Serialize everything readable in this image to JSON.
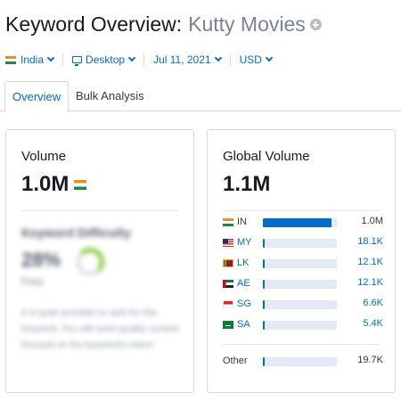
{
  "header": {
    "title_prefix": "Keyword Overview:",
    "keyword": "Kutty Movies"
  },
  "filters": {
    "country": "India",
    "device": "Desktop",
    "date": "Jul 11, 2021",
    "currency": "USD"
  },
  "tabs": [
    {
      "label": "Overview",
      "active": true
    },
    {
      "label": "Bulk Analysis",
      "active": false
    }
  ],
  "volume_card": {
    "label": "Volume",
    "value": "1.0M",
    "flag_icon": "india-flag-icon",
    "kd": {
      "title": "Keyword Difficulty",
      "value": "28%",
      "sub": "Easy",
      "level": 0.28,
      "description": "It is quite possible to rank for this keyword. You will need quality content focused on the keyword's intent."
    }
  },
  "global_card": {
    "label": "Global Volume",
    "value": "1.1M",
    "rows": [
      {
        "code": "IN",
        "flag": "in",
        "value": "1.0M",
        "share": 0.93
      },
      {
        "code": "MY",
        "flag": "my",
        "value": "18.1K",
        "share": 0.03
      },
      {
        "code": "LK",
        "flag": "lk",
        "value": "12.1K",
        "share": 0.03
      },
      {
        "code": "AE",
        "flag": "ae",
        "value": "12.1K",
        "share": 0.03
      },
      {
        "code": "SG",
        "flag": "sg",
        "value": "6.6K",
        "share": 0.03
      },
      {
        "code": "SA",
        "flag": "sa",
        "value": "5.4K",
        "share": 0.03
      }
    ],
    "other": {
      "label": "Other",
      "value": "19.7K",
      "share": 0.03
    }
  },
  "colors": {
    "accent": "#006dca",
    "bar_track": "#e3eaf6",
    "border": "#d6d9e0"
  }
}
